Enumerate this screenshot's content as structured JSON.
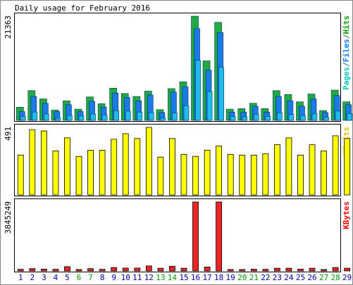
{
  "chart_data": {
    "type": "bar",
    "title": "Daily usage for February 2016",
    "categories": [
      "1",
      "2",
      "3",
      "4",
      "5",
      "6",
      "7",
      "8",
      "9",
      "10",
      "11",
      "12",
      "13",
      "14",
      "15",
      "16",
      "17",
      "18",
      "19",
      "20",
      "21",
      "22",
      "23",
      "24",
      "25",
      "26",
      "27",
      "28",
      "29"
    ],
    "weekend_days": [
      "6",
      "7",
      "13",
      "14",
      "20",
      "21",
      "27",
      "28"
    ],
    "panels": [
      {
        "id": "pages_files_hits",
        "ymax_label": "21363",
        "ymax": 21363,
        "legend": [
          {
            "text": "Pages",
            "color": "#00c8c8"
          },
          {
            "text": "/",
            "color": "#555555"
          },
          {
            "text": "Files",
            "color": "#0080ff"
          },
          {
            "text": "/",
            "color": "#555555"
          },
          {
            "text": "Hits",
            "color": "#00a000"
          }
        ],
        "series": [
          {
            "name": "Hits",
            "color": "#22aa44",
            "values": [
              2700,
              6100,
              4400,
              2100,
              4000,
              2300,
              4800,
              3400,
              6600,
              5500,
              4900,
              6000,
              2200,
              6500,
              7900,
              21363,
              12200,
              20100,
              2300,
              2400,
              3500,
              2400,
              6100,
              5300,
              3800,
              5400,
              2000,
              6200,
              3800
            ]
          },
          {
            "name": "Files",
            "color": "#1a7ae8",
            "values": [
              1800,
              4900,
              3500,
              1800,
              3200,
              1800,
              3900,
              2700,
              5600,
              4700,
              4000,
              5200,
              1600,
              5800,
              6900,
              18800,
              10300,
              18000,
              1700,
              1700,
              2900,
              1700,
              4900,
              4000,
              2900,
              4400,
              1600,
              5100,
              3200
            ]
          },
          {
            "name": "Pages",
            "color": "#22bbee",
            "values": [
              800,
              1700,
              1300,
              500,
              1000,
              900,
              1300,
              1100,
              2000,
              1900,
              1700,
              1600,
              500,
              1500,
              3000,
              12300,
              5900,
              10900,
              800,
              700,
              1200,
              800,
              1500,
              1200,
              1000,
              1400,
              600,
              1900,
              1400
            ]
          }
        ]
      },
      {
        "id": "visits",
        "ymax_label": "491",
        "ymax": 491,
        "legend": [
          {
            "text": "Visits",
            "color": "#e0c000"
          }
        ],
        "series": [
          {
            "name": "Visits",
            "color": "#ffff00",
            "values": [
              290,
              475,
              465,
              320,
              415,
              280,
              325,
              325,
              405,
              445,
              410,
              491,
              275,
              410,
              295,
              280,
              325,
              355,
              295,
              290,
              290,
              300,
              365,
              415,
              290,
              365,
              320,
              430,
              410
            ]
          }
        ]
      },
      {
        "id": "kbytes",
        "ymax_label": "3845249",
        "ymax": 3845249,
        "legend": [
          {
            "text": "KBytes",
            "color": "#ff0000"
          }
        ],
        "series": [
          {
            "name": "KBytes",
            "color": "#ee2222",
            "values": [
              90000,
              130000,
              100000,
              90000,
              240000,
              80000,
              130000,
              90000,
              190000,
              160000,
              160000,
              280000,
              150000,
              260000,
              150000,
              3845249,
              220000,
              3845249,
              80000,
              80000,
              100000,
              90000,
              150000,
              150000,
              100000,
              150000,
              80000,
              190000,
              150000
            ]
          }
        ]
      }
    ]
  }
}
